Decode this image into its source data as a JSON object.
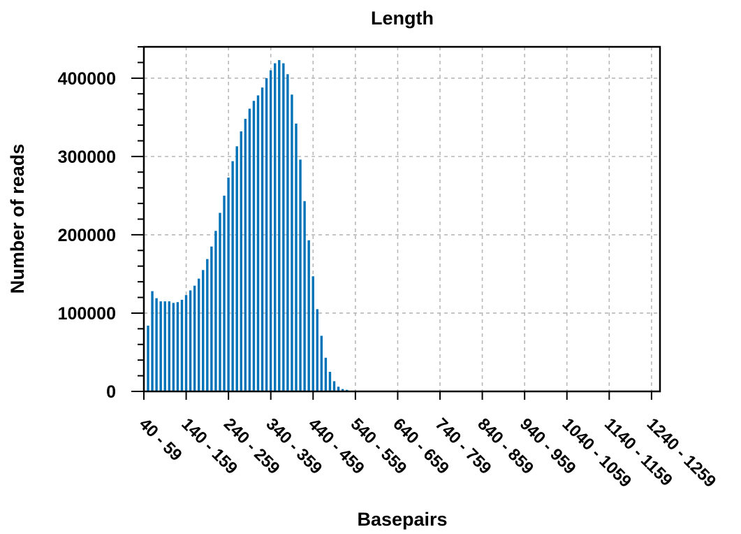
{
  "chart_data": {
    "type": "bar",
    "title": "Length",
    "xlabel": "Basepairs",
    "ylabel": "Number of reads",
    "bar_color": "#0072b8",
    "grid": true,
    "legend": "none",
    "x_start": 40,
    "bin_width": 10,
    "x_range": [
      40,
      1260
    ],
    "ylim": [
      0,
      440000
    ],
    "y_ticks": [
      0,
      100000,
      200000,
      300000,
      400000
    ],
    "x_tick_labels": [
      "40 - 59",
      "140 - 159",
      "240 - 259",
      "340 - 359",
      "440 - 459",
      "540 - 559",
      "640 - 659",
      "740 - 759",
      "840 - 859",
      "940 - 959",
      "1040 - 1059",
      "1140 - 1159",
      "1240 - 1259"
    ],
    "values": [
      84000,
      128000,
      119000,
      115000,
      115000,
      115000,
      113000,
      114000,
      117000,
      123000,
      129000,
      135000,
      144000,
      155000,
      169000,
      185000,
      205000,
      228000,
      250000,
      273000,
      294000,
      313000,
      332000,
      348000,
      361000,
      371000,
      378000,
      388000,
      400000,
      410000,
      419000,
      423000,
      419000,
      405000,
      379000,
      342000,
      296000,
      243000,
      193000,
      147000,
      105000,
      71000,
      43000,
      25000,
      13000,
      6000,
      3000,
      2000,
      500,
      300,
      0,
      0,
      0,
      0,
      0,
      0,
      0,
      0,
      0,
      0,
      0,
      0,
      0,
      0,
      0,
      0,
      0,
      0,
      0,
      0,
      0,
      0,
      0,
      0,
      0,
      0,
      0,
      0,
      0,
      0,
      0,
      0,
      0,
      0,
      0,
      0,
      0,
      0,
      0,
      0,
      0,
      0,
      0,
      0,
      0,
      0,
      0,
      0,
      0,
      0,
      0,
      0,
      0,
      0,
      0,
      0,
      0,
      0,
      0,
      0,
      0,
      0,
      0,
      0,
      0,
      0,
      0,
      0,
      0,
      0
    ]
  }
}
